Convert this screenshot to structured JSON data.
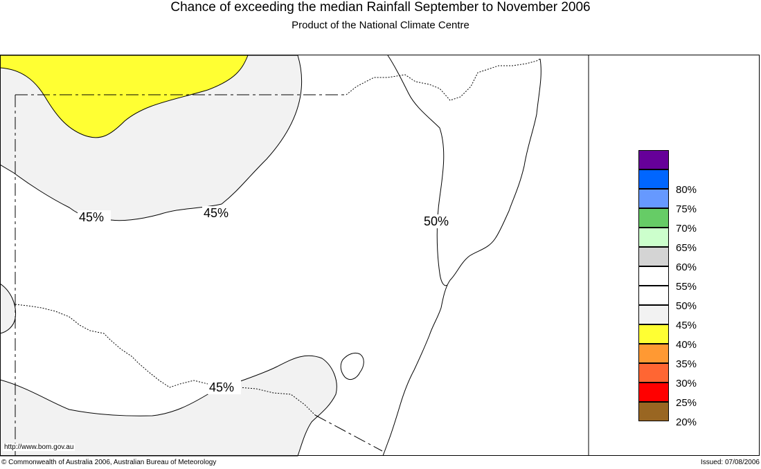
{
  "header": {
    "title": "Chance of exceeding the median Rainfall September to November 2006",
    "subtitle": "Product of the National Climate Centre"
  },
  "map": {
    "contour_labels": [
      "45%",
      "45%",
      "50%",
      "45%"
    ],
    "fill_colors": {
      "35-40": "#ffff33",
      "40-45": "#f2f2f2",
      "45-55": "#ffffff"
    }
  },
  "legend": {
    "items": [
      {
        "label": "",
        "color": "#660099"
      },
      {
        "label": "80%",
        "color": "#0066ff"
      },
      {
        "label": "75%",
        "color": "#6699ff"
      },
      {
        "label": "70%",
        "color": "#66cc66"
      },
      {
        "label": "65%",
        "color": "#ccffcc"
      },
      {
        "label": "60%",
        "color": "#d4d4d4"
      },
      {
        "label": "55%",
        "color": "#ffffff"
      },
      {
        "label": "50%",
        "color": "#ffffff"
      },
      {
        "label": "45%",
        "color": "#f2f2f2"
      },
      {
        "label": "40%",
        "color": "#ffff33"
      },
      {
        "label": "35%",
        "color": "#ff9933"
      },
      {
        "label": "30%",
        "color": "#ff6633"
      },
      {
        "label": "25%",
        "color": "#ff0000"
      },
      {
        "label": "20%",
        "color": "#996622"
      }
    ]
  },
  "footer": {
    "url": "http://www.bom.gov.au",
    "copyright": "© Commonwealth of Australia 2006, Australian Bureau of Meteorology",
    "issued": "Issued: 07/08/2006"
  }
}
